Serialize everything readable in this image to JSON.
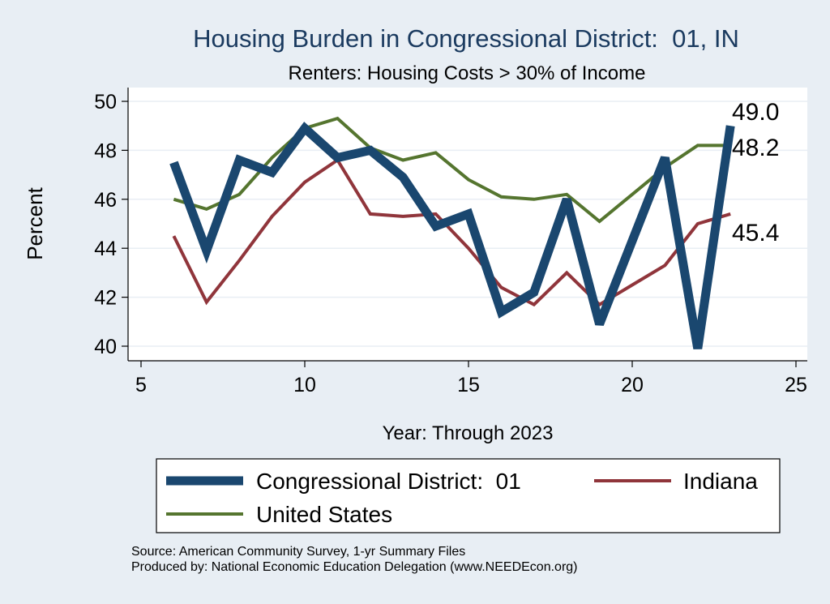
{
  "chart_data": {
    "type": "line",
    "title": "Housing Burden in Congressional District:  01, IN",
    "subtitle": "Renters: Housing Costs > 30% of Income",
    "xlabel": "Year: Through 2023",
    "ylabel": "Percent",
    "xlim": [
      5,
      25
    ],
    "ylim": [
      40,
      50
    ],
    "x_ticks": [
      5,
      10,
      15,
      20,
      25
    ],
    "y_ticks": [
      40,
      42,
      44,
      46,
      48,
      50
    ],
    "grid": true,
    "legend_position": "bottom",
    "x": [
      6,
      7,
      8,
      9,
      10,
      11,
      12,
      13,
      14,
      15,
      16,
      17,
      18,
      19,
      20,
      21,
      22,
      23
    ],
    "series": [
      {
        "name": "Congressional District:  01",
        "color": "#1a476f",
        "values": [
          47.5,
          43.9,
          47.6,
          47.1,
          48.9,
          47.7,
          48.0,
          46.9,
          44.9,
          45.4,
          41.4,
          42.2,
          46.0,
          40.9,
          44.3,
          47.7,
          39.9,
          49.0
        ],
        "end_label": "49.0"
      },
      {
        "name": "Indiana",
        "color": "#90353b",
        "values": [
          44.5,
          41.8,
          43.5,
          45.3,
          46.7,
          47.6,
          45.4,
          45.3,
          45.4,
          44.0,
          42.4,
          41.7,
          43.0,
          41.7,
          42.5,
          43.3,
          45.0,
          45.4
        ],
        "end_label": "45.4"
      },
      {
        "name": "United States",
        "color": "#55752f",
        "values": [
          46.0,
          45.6,
          46.2,
          47.7,
          48.9,
          49.3,
          48.1,
          47.6,
          47.9,
          46.8,
          46.1,
          46.0,
          46.2,
          45.1,
          46.2,
          47.3,
          48.2,
          48.2
        ],
        "end_label": "48.2"
      }
    ]
  },
  "source_line1": "Source: American Community Survey, 1-yr Summary Files",
  "source_line2": "Produced by: National Economic Education Delegation (www.NEEDEcon.org)"
}
